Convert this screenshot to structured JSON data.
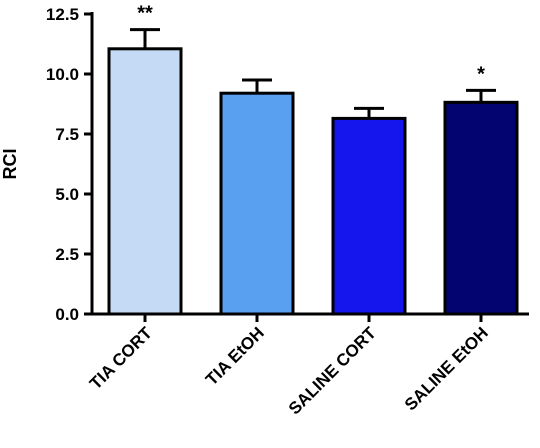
{
  "chart_data": {
    "type": "bar",
    "title": "",
    "xlabel": "",
    "ylabel": "RCI",
    "ylim": [
      0,
      12.5
    ],
    "yticks": [
      "0.0",
      "2.5",
      "5.0",
      "7.5",
      "10.0",
      "12.5"
    ],
    "ytick_values": [
      0,
      2.5,
      5,
      7.5,
      10,
      12.5
    ],
    "grid": false,
    "categories": [
      "TIA CORT",
      "TIA EtOH",
      "SALINE CORT",
      "SALINE EtOH"
    ],
    "values": [
      11.05,
      9.2,
      8.15,
      8.82
    ],
    "errors": [
      0.8,
      0.55,
      0.42,
      0.5
    ],
    "annotations": [
      "**",
      "",
      "",
      "*"
    ],
    "colors": [
      "#c5dbf5",
      "#5aa0f0",
      "#1515ee",
      "#040470"
    ]
  }
}
